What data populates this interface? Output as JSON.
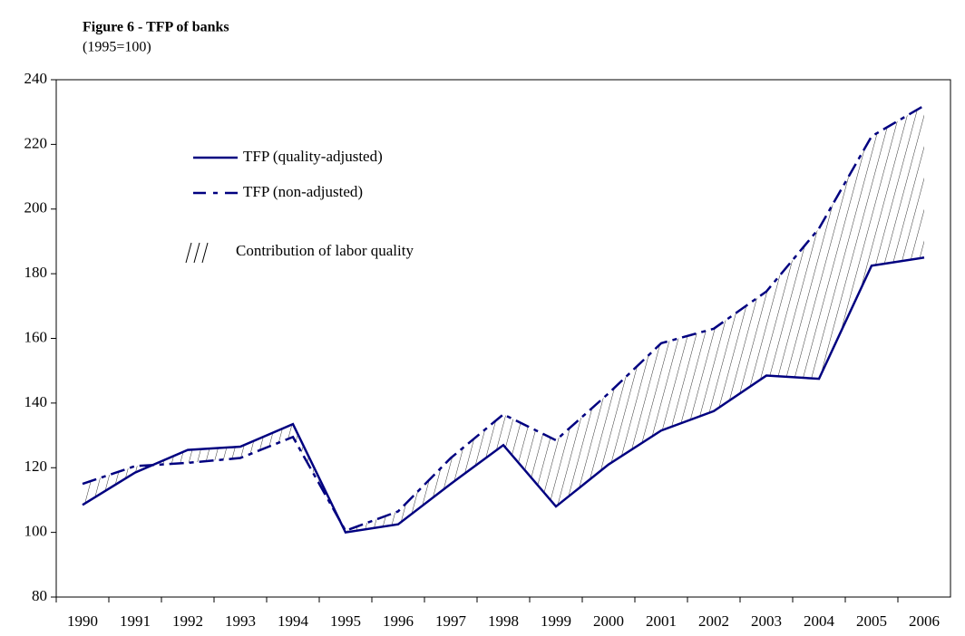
{
  "chart_data": {
    "type": "line",
    "title": "Figure 6 - TFP of banks",
    "subtitle": "(1995=100)",
    "categories": [
      "1990",
      "1991",
      "1992",
      "1993",
      "1994",
      "1995",
      "1996",
      "1997",
      "1998",
      "1999",
      "2000",
      "2001",
      "2002",
      "2003",
      "2004",
      "2005",
      "2006"
    ],
    "series": [
      {
        "name": "TFP (quality-adjusted)",
        "color": "#000080",
        "style": "solid",
        "values": [
          108.5,
          118.5,
          125.5,
          126.5,
          133.5,
          100,
          102.5,
          115,
          127,
          108,
          121,
          131.5,
          137.5,
          148.5,
          147.5,
          182.5,
          185
        ]
      },
      {
        "name": "TFP (non-adjusted)",
        "color": "#000080",
        "style": "dashdot",
        "values": [
          115,
          120.5,
          121.5,
          123,
          129.5,
          100.5,
          106.5,
          123,
          136.5,
          128.5,
          143,
          158.5,
          163,
          174.5,
          194,
          222.5,
          232
        ]
      }
    ],
    "hatch_label": "Contribution of labor quality",
    "ylim": [
      80,
      240
    ],
    "yticks": [
      80,
      100,
      120,
      140,
      160,
      180,
      200,
      220,
      240
    ]
  }
}
